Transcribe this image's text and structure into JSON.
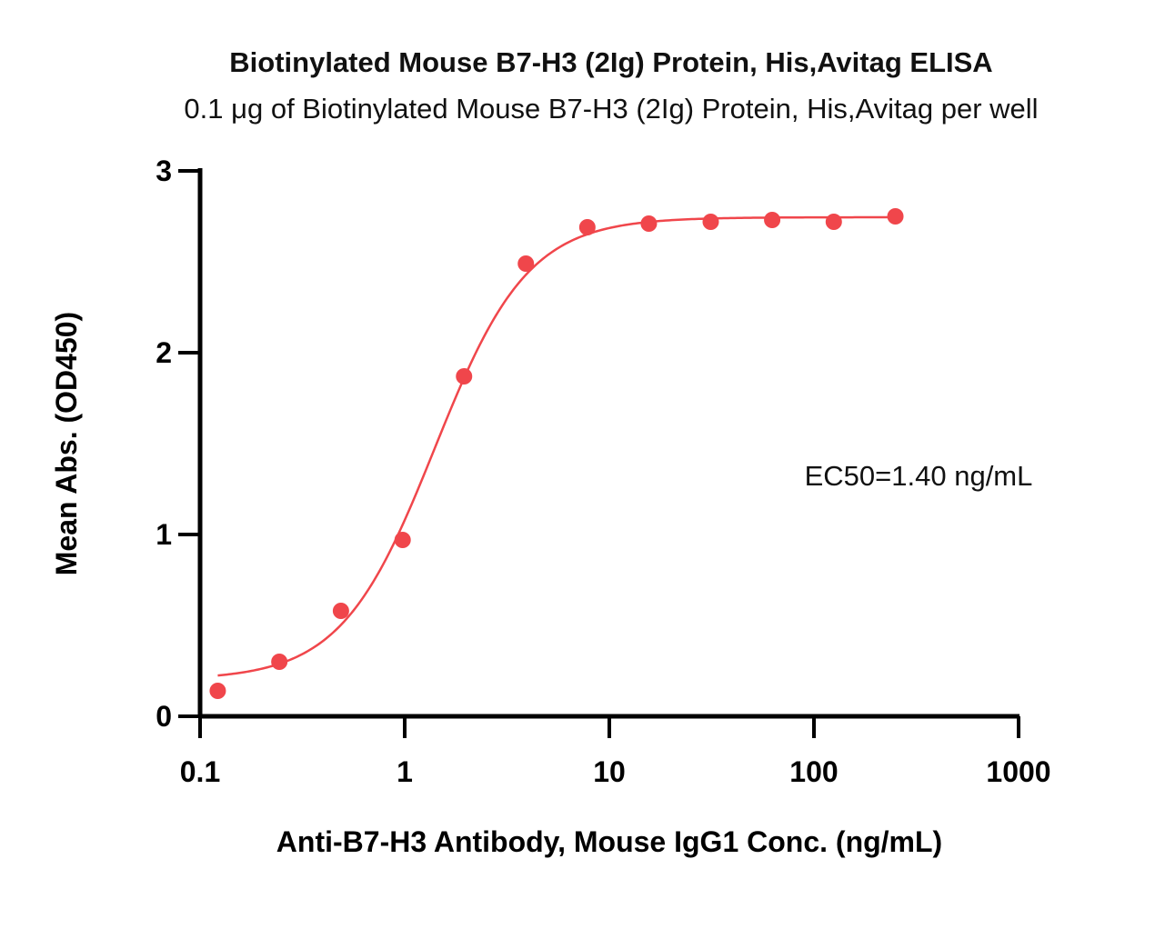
{
  "chart_data": {
    "type": "scatter",
    "title": "Biotinylated Mouse B7-H3 (2Ig) Protein, His,Avitag ELISA",
    "subtitle": "0.1 μg of Biotinylated Mouse B7-H3 (2Ig) Protein, His,Avitag per well",
    "xlabel": "Anti-B7-H3 Antibody, Mouse IgG1 Conc. (ng/mL)",
    "ylabel": "Mean Abs. (OD450)",
    "x_scale": "log",
    "xlim": [
      0.1,
      1000
    ],
    "ylim": [
      0,
      3
    ],
    "x_ticks": [
      0.1,
      1,
      10,
      100,
      1000
    ],
    "x_tick_labels": [
      "0.1",
      "1",
      "10",
      "100",
      "1000"
    ],
    "y_ticks": [
      0,
      1,
      2,
      3
    ],
    "y_tick_labels": [
      "0",
      "1",
      "2",
      "3"
    ],
    "annotation": "EC50=1.40 ng/mL",
    "grid": false,
    "color": "#f0464b",
    "series": [
      {
        "x": [
          0.122,
          0.244,
          0.488,
          0.977,
          1.95,
          3.91,
          7.81,
          15.6,
          31.3,
          62.5,
          125,
          250
        ],
        "y": [
          0.14,
          0.3,
          0.58,
          0.97,
          1.87,
          2.49,
          2.69,
          2.71,
          2.72,
          2.73,
          2.72,
          2.75
        ]
      }
    ],
    "fit": {
      "model": "4PL",
      "bottom": 0.2,
      "top": 2.745,
      "ec50": 1.4,
      "hill": 1.9,
      "x_range": [
        0.122,
        250
      ]
    }
  }
}
